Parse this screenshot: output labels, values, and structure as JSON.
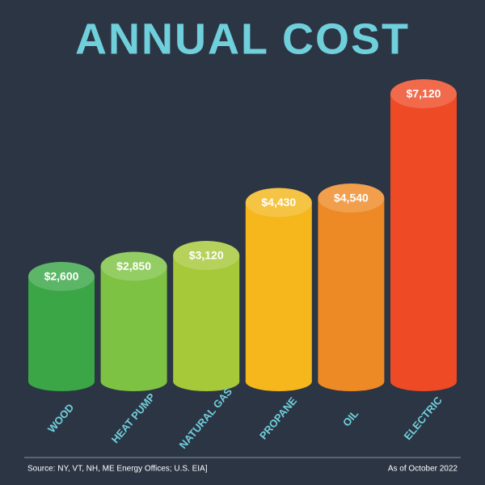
{
  "chart_data": {
    "type": "bar",
    "title": "ANNUAL COST",
    "categories": [
      "WOOD",
      "HEAT PUMP",
      "NATURAL GAS",
      "PROPANE",
      "OIL",
      "ELECTRIC"
    ],
    "values": [
      2600,
      2850,
      3120,
      4430,
      4540,
      7120
    ],
    "value_labels": [
      "$2,600",
      "$2,850",
      "$3,120",
      "$4,430",
      "$4,540",
      "$7,120"
    ],
    "colors": [
      "#3aa646",
      "#7dc242",
      "#a6c93a",
      "#f5b71c",
      "#ee8a26",
      "#ee4a25"
    ],
    "source": "Source: NY, VT, NH, ME Energy Offices; U.S. EIA]",
    "date_note": "As of October 2022"
  }
}
